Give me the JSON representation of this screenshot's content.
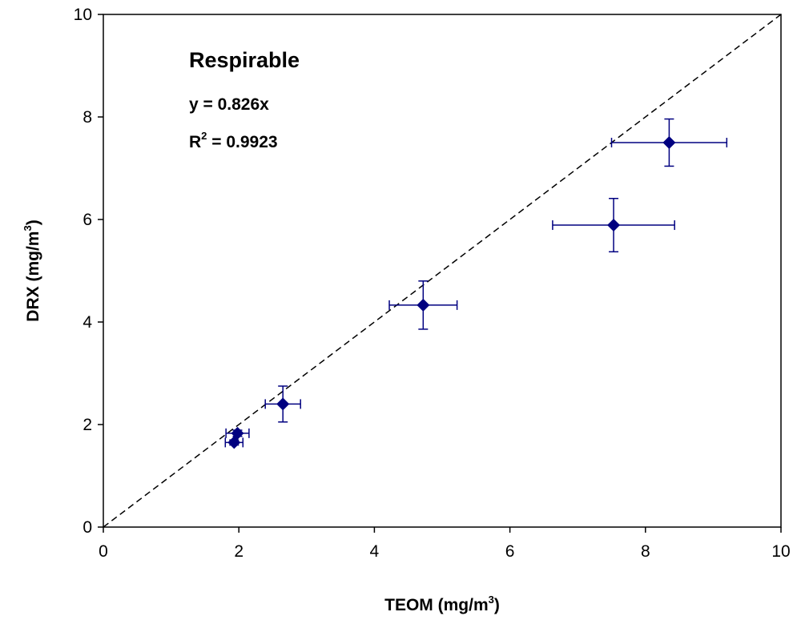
{
  "chart_data": {
    "type": "scatter",
    "title": "",
    "xlabel": {
      "main": "TEOM (mg/m",
      "sup": "3",
      "end": ")"
    },
    "ylabel": {
      "main": "DRX (mg/m",
      "sup": "3",
      "end": ")"
    },
    "xlim": [
      0,
      10
    ],
    "ylim": [
      0,
      10
    ],
    "xticks": [
      0,
      2,
      4,
      6,
      8,
      10
    ],
    "yticks": [
      0,
      2,
      4,
      6,
      8,
      10
    ],
    "grid": false,
    "annotations": {
      "label": "Respirable",
      "equation": "y = 0.826x",
      "r2_prefix": "R",
      "r2_sup": "2",
      "r2_value": " = 0.9923"
    },
    "reference_line": {
      "style": "dashed",
      "from": [
        0,
        0
      ],
      "to": [
        10,
        10
      ]
    },
    "series": [
      {
        "marker": "diamond",
        "color": "#000080",
        "points": [
          {
            "x": 1.93,
            "y": 1.65,
            "xerr": 0.13,
            "yerr": 0.05
          },
          {
            "x": 1.98,
            "y": 1.83,
            "xerr": 0.17,
            "yerr": 0.06
          },
          {
            "x": 2.65,
            "y": 2.4,
            "xerr": 0.26,
            "yerr": 0.35
          },
          {
            "x": 4.72,
            "y": 4.33,
            "xerr": 0.5,
            "yerr": 0.47
          },
          {
            "x": 7.53,
            "y": 5.89,
            "xerr": 0.9,
            "yerr": 0.52
          },
          {
            "x": 8.35,
            "y": 7.5,
            "xerr": 0.85,
            "yerr": 0.46
          }
        ]
      }
    ]
  }
}
